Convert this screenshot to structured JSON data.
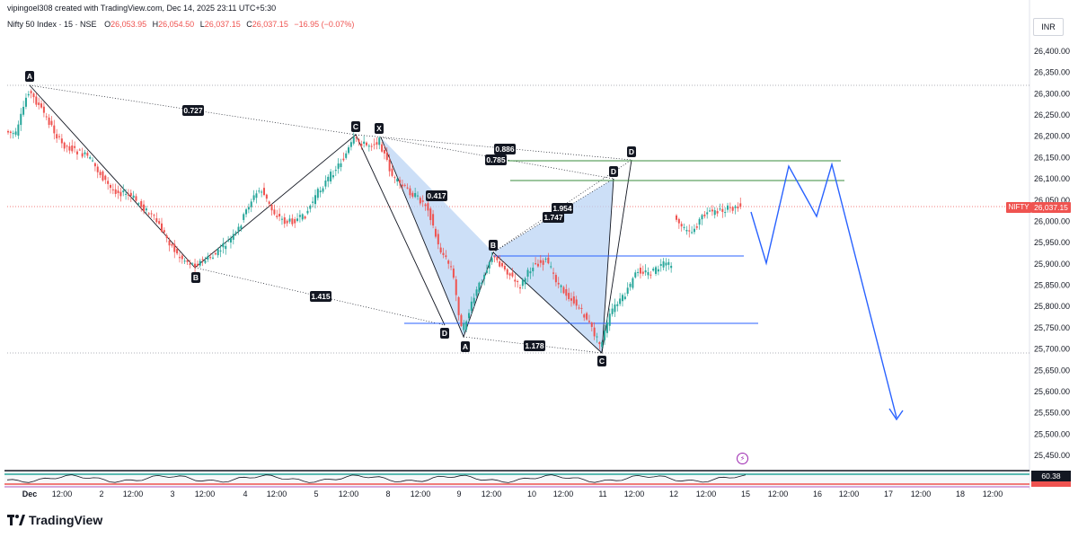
{
  "header": {
    "credit": "vipingoel308 created with TradingView.com, Dec 14, 2025 23:11 UTC+5:30",
    "symbol": "Nifty 50 Index · 15 · NSE",
    "open_key": "O",
    "open": "26,053.95",
    "high_key": "H",
    "high": "26,054.50",
    "low_key": "L",
    "low": "26,037.15",
    "close_key": "C",
    "close": "26,037.15",
    "change": "−16.95 (−0.07%)"
  },
  "currency": "INR",
  "price_tag": {
    "symbol": "NIFTY",
    "value": "26,037.15",
    "color": "#ef5350"
  },
  "oscillator_tag": "60.38",
  "price_axis": {
    "labels": [
      "26,400.00",
      "26,350.00",
      "26,300.00",
      "26,250.00",
      "26,200.00",
      "26,150.00",
      "26,100.00",
      "26,050.00",
      "26,000.00",
      "25,950.00",
      "25,900.00",
      "25,850.00",
      "25,800.00",
      "25,750.00",
      "25,700.00",
      "25,650.00",
      "25,600.00",
      "25,550.00",
      "25,500.00",
      "25,450.00"
    ],
    "values": [
      26400,
      26350,
      26300,
      26250,
      26200,
      26150,
      26100,
      26050,
      26000,
      25950,
      25900,
      25850,
      25800,
      25750,
      25700,
      25650,
      25600,
      25550,
      25500,
      25450
    ]
  },
  "time_axis": {
    "labels": [
      "Dec",
      "12:00",
      "2",
      "12:00",
      "3",
      "12:00",
      "4",
      "12:00",
      "5",
      "12:00",
      "8",
      "12:00",
      "9",
      "12:00",
      "10",
      "12:00",
      "11",
      "12:00",
      "12",
      "12:00",
      "15",
      "12:00",
      "16",
      "12:00",
      "17",
      "12:00",
      "18",
      "12:00"
    ]
  },
  "pattern_points": [
    "A",
    "B",
    "C",
    "D",
    "X",
    "A",
    "B",
    "C",
    "D",
    "D"
  ],
  "ratios": [
    "0.727",
    "1.415",
    "0.886",
    "0.785",
    "0.417",
    "1.954",
    "1.747",
    "1.178"
  ],
  "footer": {
    "brand": "TradingView"
  },
  "colors": {
    "up": "#26a69a",
    "down": "#ef5350",
    "pattern_fill": "#bbd4f4",
    "projection": "#2962ff",
    "level_green": "#388e3c",
    "level_blue": "#2962ff"
  }
}
